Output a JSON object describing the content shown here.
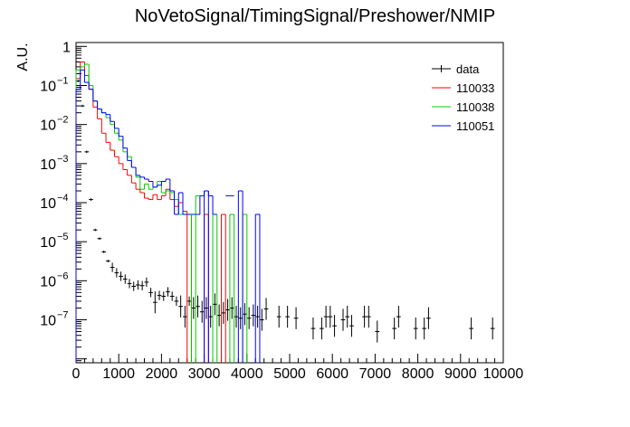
{
  "chart_data": {
    "type": "line",
    "title": "NoVetoSignal/TimingSignal/Preshower/NMIP",
    "xlabel": "",
    "ylabel": "A.U.",
    "xlim": [
      0,
      10000
    ],
    "ylim_log10": [
      -8.1,
      0.1
    ],
    "yscale": "log",
    "x_ticks": [
      0,
      1000,
      2000,
      3000,
      4000,
      5000,
      6000,
      7000,
      8000,
      9000,
      10000
    ],
    "x_tick_labels": [
      "0",
      "1000",
      "2000",
      "3000",
      "4000",
      "5000",
      "6000",
      "7000",
      "8000",
      "9000",
      "10000"
    ],
    "y_ticks": [
      {
        "exp": 0,
        "label": "1",
        "sup": ""
      },
      {
        "exp": -1,
        "label": "10",
        "sup": "−1"
      },
      {
        "exp": -2,
        "label": "10",
        "sup": "−2"
      },
      {
        "exp": -3,
        "label": "10",
        "sup": "−3"
      },
      {
        "exp": -4,
        "label": "10",
        "sup": "−4"
      },
      {
        "exp": -5,
        "label": "10",
        "sup": "−5"
      },
      {
        "exp": -6,
        "label": "10",
        "sup": "−6"
      },
      {
        "exp": -7,
        "label": "10",
        "sup": "−7"
      }
    ],
    "legend_position": "top-right",
    "bin_width": 100,
    "series": [
      {
        "name": "data",
        "color": "#000000",
        "style": "points",
        "points": [
          [
            50,
            0.13
          ],
          [
            150,
            0.03
          ],
          [
            250,
            0.002
          ],
          [
            350,
            0.00012
          ],
          [
            450,
            2e-05
          ],
          [
            550,
            1.2e-05
          ],
          [
            650,
            5.5e-06
          ],
          [
            750,
            3.2e-06
          ],
          [
            850,
            2.2e-06
          ],
          [
            950,
            1.6e-06
          ],
          [
            1050,
            1.3e-06
          ],
          [
            1150,
            1.1e-06
          ],
          [
            1250,
            8.5e-07
          ],
          [
            1350,
            7.2e-07
          ],
          [
            1450,
            7.8e-07
          ],
          [
            1550,
            7.5e-07
          ],
          [
            1650,
            9.2e-07
          ],
          [
            1750,
            5e-07
          ],
          [
            1850,
            2.8e-07
          ],
          [
            1950,
            4.2e-07
          ],
          [
            2050,
            4e-07
          ],
          [
            2150,
            5.2e-07
          ],
          [
            2250,
            4e-07
          ],
          [
            2350,
            3e-07
          ],
          [
            2450,
            2.2e-07
          ],
          [
            2550,
            1.2e-07
          ],
          [
            2650,
            3e-07
          ],
          [
            2750,
            2e-07
          ],
          [
            2850,
            2.2e-07
          ],
          [
            2950,
            1.6e-07
          ],
          [
            3050,
            2e-07
          ],
          [
            3150,
            1.2e-07
          ],
          [
            3250,
            2.5e-07
          ],
          [
            3350,
            1.3e-07
          ],
          [
            3450,
            1.5e-07
          ],
          [
            3550,
            1.8e-07
          ],
          [
            3650,
            2e-07
          ],
          [
            3750,
            1.2e-07
          ],
          [
            3850,
            1.1e-07
          ],
          [
            3950,
            1.4e-07
          ],
          [
            4050,
            1.1e-07
          ],
          [
            4150,
            1.3e-07
          ],
          [
            4250,
            1.2e-07
          ],
          [
            4350,
            1e-07
          ],
          [
            4450,
            1.9e-07
          ],
          [
            4750,
            1.2e-07
          ],
          [
            4950,
            1.2e-07
          ],
          [
            5150,
            1.1e-07
          ],
          [
            5550,
            6e-08
          ],
          [
            5750,
            6e-08
          ],
          [
            5850,
            1.2e-07
          ],
          [
            5950,
            1.2e-07
          ],
          [
            6050,
            7e-08
          ],
          [
            6250,
            1e-07
          ],
          [
            6350,
            1.2e-07
          ],
          [
            6450,
            7e-08
          ],
          [
            6750,
            1.2e-07
          ],
          [
            6850,
            1.2e-07
          ],
          [
            7050,
            5e-08
          ],
          [
            7450,
            6e-08
          ],
          [
            7550,
            1.2e-07
          ],
          [
            7950,
            6e-08
          ],
          [
            8150,
            6e-08
          ],
          [
            8250,
            1.1e-07
          ],
          [
            9250,
            6e-08
          ],
          [
            9750,
            6e-08
          ]
        ]
      },
      {
        "name": "110033",
        "color": "#ff0000",
        "style": "hist",
        "bins": [
          [
            0,
            0.15
          ],
          [
            100,
            0.4
          ],
          [
            200,
            0.18
          ],
          [
            300,
            0.08
          ],
          [
            400,
            0.028
          ],
          [
            500,
            0.014
          ],
          [
            600,
            0.006
          ],
          [
            700,
            0.0035
          ],
          [
            800,
            0.0022
          ],
          [
            900,
            0.0015
          ],
          [
            1000,
            0.001
          ],
          [
            1100,
            0.0007
          ],
          [
            1200,
            0.0005
          ],
          [
            1300,
            0.00032
          ],
          [
            1400,
            0.00022
          ],
          [
            1500,
            0.00018
          ],
          [
            1600,
            0.00013
          ],
          [
            1700,
            0.00012
          ],
          [
            1800,
            0.00016
          ],
          [
            1900,
            0.00012
          ],
          [
            2000,
            0.00015
          ],
          [
            2100,
            0.00022
          ],
          [
            2200,
            0.00012
          ],
          [
            2300,
            8e-05
          ],
          [
            2400,
            0.0001
          ],
          [
            2500,
            6e-05
          ],
          [
            2600,
            5e-05
          ],
          [
            2700,
            5e-05
          ],
          [
            3000,
            5e-05
          ],
          [
            3400,
            5e-05
          ]
        ]
      },
      {
        "name": "110038",
        "color": "#00cc00",
        "style": "hist",
        "bins": [
          [
            0,
            0.25
          ],
          [
            100,
            0.3
          ],
          [
            200,
            0.35
          ],
          [
            300,
            0.1
          ],
          [
            400,
            0.04
          ],
          [
            500,
            0.025
          ],
          [
            600,
            0.02
          ],
          [
            700,
            0.015
          ],
          [
            800,
            0.01
          ],
          [
            900,
            0.006
          ],
          [
            1000,
            0.004
          ],
          [
            1100,
            0.002
          ],
          [
            1200,
            0.0015
          ],
          [
            1300,
            0.0008
          ],
          [
            1400,
            0.00045
          ],
          [
            1500,
            0.00022
          ],
          [
            1600,
            0.0003
          ],
          [
            1700,
            0.00022
          ],
          [
            1800,
            0.00025
          ],
          [
            1900,
            0.00035
          ],
          [
            2000,
            0.00018
          ],
          [
            2100,
            0.0002
          ],
          [
            2200,
            0.00018
          ],
          [
            2300,
            0.00012
          ],
          [
            2400,
            5e-05
          ],
          [
            2500,
            5e-05
          ],
          [
            2600,
            5e-05
          ],
          [
            2700,
            5e-05
          ],
          [
            2800,
            0.00015
          ],
          [
            3200,
            5e-05
          ],
          [
            3600,
            5e-05
          ],
          [
            3900,
            5e-05
          ]
        ]
      },
      {
        "name": "110051",
        "color": "#0000ff",
        "style": "hist",
        "bins": [
          [
            0,
            0.08
          ],
          [
            100,
            0.25
          ],
          [
            200,
            0.12
          ],
          [
            300,
            0.08
          ],
          [
            400,
            0.04
          ],
          [
            500,
            0.025
          ],
          [
            600,
            0.02
          ],
          [
            700,
            0.018
          ],
          [
            800,
            0.012
          ],
          [
            900,
            0.008
          ],
          [
            1000,
            0.005
          ],
          [
            1100,
            0.0025
          ],
          [
            1200,
            0.0012
          ],
          [
            1300,
            0.0008
          ],
          [
            1400,
            0.0005
          ],
          [
            1500,
            0.00045
          ],
          [
            1600,
            0.0004
          ],
          [
            1700,
            0.00035
          ],
          [
            1800,
            0.00025
          ],
          [
            1900,
            0.00028
          ],
          [
            2000,
            0.00035
          ],
          [
            2100,
            0.0004
          ],
          [
            2200,
            0.0002
          ],
          [
            2300,
            5e-05
          ],
          [
            2400,
            0.00018
          ],
          [
            2500,
            5e-05
          ],
          [
            2600,
            5e-05
          ],
          [
            2700,
            5e-05
          ],
          [
            2800,
            5e-05
          ],
          [
            2900,
            0.00015
          ],
          [
            3000,
            0.0002
          ],
          [
            3100,
            0.00015
          ],
          [
            3200,
            5e-05
          ],
          [
            3500,
            0.00015
          ],
          [
            3600,
            0.00015
          ],
          [
            3800,
            0.0002
          ],
          [
            4200,
            5e-05
          ]
        ]
      }
    ],
    "drop_lines": [
      {
        "series": "110033",
        "x": [
          2600,
          3000,
          3400
        ]
      },
      {
        "series": "110038",
        "x": [
          2700,
          3200,
          3600,
          3900
        ]
      },
      {
        "series": "110051",
        "x": [
          3000,
          3800,
          4200
        ]
      }
    ]
  }
}
